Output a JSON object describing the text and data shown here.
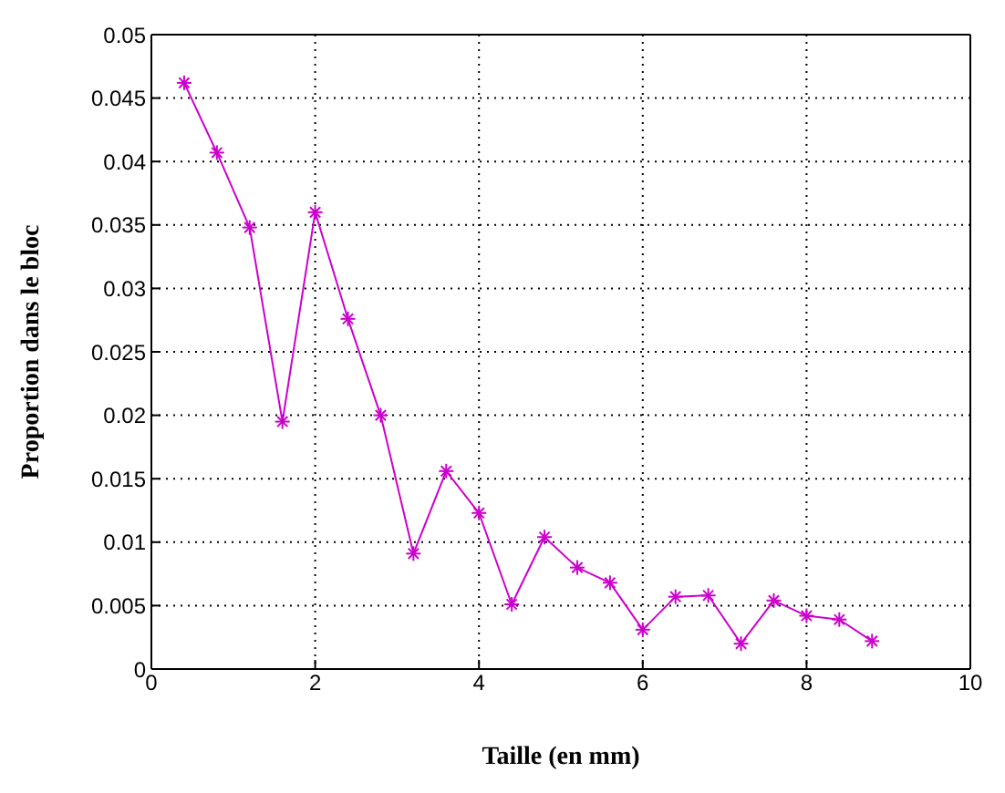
{
  "chart_data": {
    "type": "line",
    "xlabel": "Taille (en mm)",
    "ylabel": "Proportion dans le bloc",
    "x": [
      0.4,
      0.8,
      1.2,
      1.6,
      2.0,
      2.4,
      2.8,
      3.2,
      3.6,
      4.0,
      4.4,
      4.8,
      5.2,
      5.6,
      6.0,
      6.4,
      6.8,
      7.2,
      7.6,
      8.0,
      8.4,
      8.8
    ],
    "series": [
      {
        "color": "#cc00cc",
        "values": [
          0.0462,
          0.0407,
          0.0348,
          0.0195,
          0.036,
          0.0276,
          0.02,
          0.0091,
          0.0156,
          0.0123,
          0.0051,
          0.0104,
          0.008,
          0.0068,
          0.0031,
          0.0057,
          0.0058,
          0.002,
          0.0054,
          0.0042,
          0.0039,
          0.0022
        ]
      }
    ],
    "xlim": [
      0,
      10
    ],
    "xticks": [
      0,
      2,
      4,
      6,
      8,
      10
    ],
    "ylim": [
      0,
      0.05
    ],
    "yticks": [
      0,
      0.005,
      0.01,
      0.015,
      0.02,
      0.025,
      0.03,
      0.035,
      0.04,
      0.045,
      0.05
    ],
    "grid": true,
    "legend": false,
    "marker": "cross",
    "line_style": "solid"
  }
}
